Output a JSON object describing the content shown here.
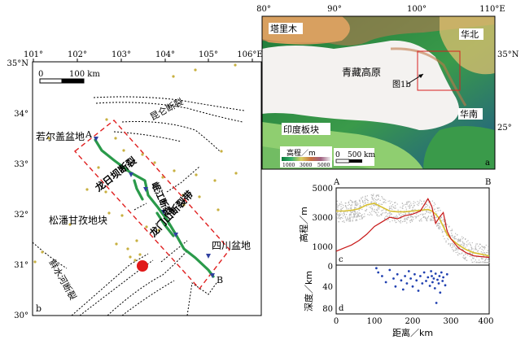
{
  "panel_b": {
    "lon_ticks": [
      "101°",
      "102°",
      "103°",
      "104°",
      "105°",
      "106°E"
    ],
    "lat_ticks": [
      "35°N",
      "34°",
      "33°",
      "32°",
      "31°",
      "30°"
    ],
    "scale_left": "0",
    "scale_right": "100 km",
    "labels": {
      "ruoergai": "若尔盖盆地",
      "kunlun": "昆仑断裂",
      "longriba": "龙日坝断裂",
      "minjiang": "岷江断裂",
      "longmenshan": "龙门山断裂带",
      "songpan": "松潘甘孜地块",
      "sichuan": "四川盆地",
      "xianshuihe": "鲜水河断裂"
    },
    "profile_start": "A",
    "profile_end": "B",
    "tag": "b"
  },
  "panel_a": {
    "lon_ticks": [
      "80°",
      "90°",
      "100°",
      "110°E"
    ],
    "lat_ticks": [
      "35°N",
      "25°"
    ],
    "labels": {
      "tarim": "塔里木",
      "north_china": "华北",
      "tibet": "青藏高原",
      "fig_ref": "图1b",
      "india": "印度板块",
      "south_china": "华南"
    },
    "legend_title": "高程／m",
    "legend_ticks": [
      "1000",
      "3000",
      "5000"
    ],
    "scale_left": "0",
    "scale_right": "500 km",
    "tag": "a"
  },
  "profile": {
    "end_a": "A",
    "end_b": "B",
    "elev_label": "高程／m",
    "elev_ticks": [
      "5000",
      "3000",
      "1000"
    ],
    "tag_c": "c",
    "depth_label": "深度／km",
    "depth_ticks": [
      "0",
      "40",
      "80"
    ],
    "tag_d": "d",
    "x_ticks": [
      "0",
      "100",
      "200",
      "300",
      "400"
    ],
    "x_label": "距离／km"
  },
  "chart_data": {
    "type": "line",
    "xlabel": "距离／km",
    "xlim": [
      0,
      400
    ],
    "series": [
      {
        "x": [
          0,
          20,
          40,
          60,
          80,
          100,
          120,
          140,
          160,
          180,
          200,
          220,
          240,
          250,
          260,
          270,
          280,
          290,
          300,
          320,
          340,
          360,
          380,
          400
        ],
        "values": [
          3500,
          3500,
          3550,
          3650,
          3900,
          4000,
          3750,
          3500,
          3450,
          3450,
          3500,
          3550,
          3600,
          3500,
          3300,
          3000,
          2500,
          2000,
          1700,
          1300,
          1000,
          800,
          700,
          600
        ]
      },
      {
        "x": [
          0,
          20,
          40,
          60,
          80,
          100,
          120,
          140,
          160,
          180,
          200,
          220,
          230,
          240,
          250,
          260,
          270,
          280,
          290,
          300,
          320,
          340,
          360,
          380,
          400
        ],
        "values": [
          900,
          1100,
          1300,
          1600,
          2000,
          2500,
          2800,
          3100,
          3000,
          3200,
          3300,
          3500,
          3900,
          4300,
          3800,
          2700,
          3100,
          3400,
          2200,
          1700,
          1100,
          800,
          600,
          550,
          500
        ]
      }
    ],
    "depth_points": [
      [
        105,
        5
      ],
      [
        110,
        12
      ],
      [
        120,
        18
      ],
      [
        130,
        28
      ],
      [
        140,
        8
      ],
      [
        150,
        22
      ],
      [
        155,
        35
      ],
      [
        160,
        15
      ],
      [
        170,
        25
      ],
      [
        175,
        40
      ],
      [
        180,
        18
      ],
      [
        185,
        30
      ],
      [
        190,
        10
      ],
      [
        195,
        22
      ],
      [
        200,
        35
      ],
      [
        205,
        15
      ],
      [
        210,
        25
      ],
      [
        215,
        42
      ],
      [
        220,
        18
      ],
      [
        225,
        30
      ],
      [
        230,
        12
      ],
      [
        235,
        26
      ],
      [
        240,
        20
      ],
      [
        245,
        34
      ],
      [
        248,
        10
      ],
      [
        250,
        18
      ],
      [
        252,
        28
      ],
      [
        255,
        22
      ],
      [
        258,
        38
      ],
      [
        260,
        14
      ],
      [
        262,
        62
      ],
      [
        265,
        24
      ],
      [
        268,
        30
      ],
      [
        270,
        18
      ],
      [
        272,
        45
      ],
      [
        275,
        12
      ],
      [
        278,
        26
      ],
      [
        280,
        20
      ],
      [
        285,
        33
      ],
      [
        290,
        15
      ]
    ]
  }
}
